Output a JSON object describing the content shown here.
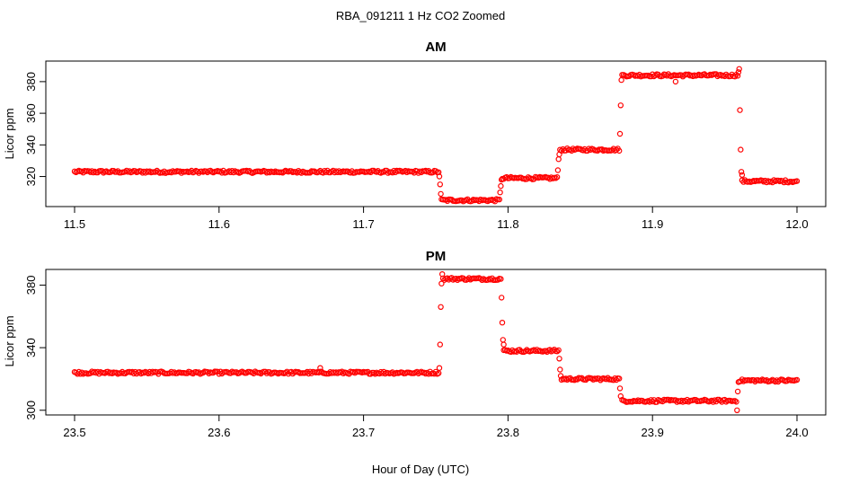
{
  "figure_title": "RBA_091211  1 Hz CO2 Zoomed",
  "xlabel": "Hour of Day (UTC)",
  "colors": {
    "points": "#ff0000",
    "axis": "#000000",
    "background": "#ffffff"
  },
  "chart_data": [
    {
      "type": "scatter",
      "title": "AM",
      "ylabel": "Licor ppm",
      "xlim": [
        11.5,
        12.0
      ],
      "ylim": [
        301,
        393
      ],
      "xticks": [
        11.5,
        11.6,
        11.7,
        11.8,
        11.9,
        12.0
      ],
      "xtick_labels": [
        "11.5",
        "11.6",
        "11.7",
        "11.8",
        "11.9",
        "12.0"
      ],
      "yticks": [
        320,
        340,
        360,
        380
      ],
      "ytick_labels": [
        "320",
        "340",
        "360",
        "380"
      ],
      "grid": false,
      "series": [
        {
          "segments": [
            {
              "x_start": 11.5,
              "x_end": 11.752,
              "y": 323
            },
            {
              "x_start": 11.754,
              "x_end": 11.794,
              "y": 305
            },
            {
              "x_start": 11.796,
              "x_end": 11.834,
              "y": 319
            },
            {
              "x_start": 11.836,
              "x_end": 11.877,
              "y": 337
            },
            {
              "x_start": 11.879,
              "x_end": 11.959,
              "y": 384
            },
            {
              "x_start": 11.962,
              "x_end": 12.0,
              "y": 317
            }
          ],
          "transition_points": [
            [
              11.7525,
              320
            ],
            [
              11.753,
              315
            ],
            [
              11.7535,
              309
            ],
            [
              11.7945,
              310
            ],
            [
              11.795,
              314
            ],
            [
              11.7955,
              318
            ],
            [
              11.8345,
              324
            ],
            [
              11.835,
              331
            ],
            [
              11.8355,
              334
            ],
            [
              11.8775,
              347
            ],
            [
              11.878,
              365
            ],
            [
              11.8785,
              381
            ],
            [
              11.9595,
              386
            ],
            [
              11.96,
              388
            ],
            [
              11.9605,
              362
            ],
            [
              11.961,
              337
            ],
            [
              11.9615,
              323
            ],
            [
              11.962,
              321
            ],
            [
              11.916,
              380
            ]
          ]
        }
      ]
    },
    {
      "type": "scatter",
      "title": "PM",
      "ylabel": "Licor ppm",
      "xlim": [
        23.5,
        24.0
      ],
      "ylim": [
        297,
        390
      ],
      "xticks": [
        23.5,
        23.6,
        23.7,
        23.8,
        23.9,
        24.0
      ],
      "xtick_labels": [
        "23.5",
        "23.6",
        "23.7",
        "23.8",
        "23.9",
        "24.0"
      ],
      "yticks": [
        300,
        340,
        380
      ],
      "ytick_labels": [
        "300",
        "340",
        "380"
      ],
      "grid": false,
      "series": [
        {
          "segments": [
            {
              "x_start": 23.5,
              "x_end": 23.752,
              "y": 324
            },
            {
              "x_start": 23.755,
              "x_end": 23.795,
              "y": 384
            },
            {
              "x_start": 23.797,
              "x_end": 23.835,
              "y": 338
            },
            {
              "x_start": 23.837,
              "x_end": 23.877,
              "y": 320
            },
            {
              "x_start": 23.879,
              "x_end": 23.958,
              "y": 306
            },
            {
              "x_start": 23.96,
              "x_end": 24.0,
              "y": 319
            }
          ],
          "transition_points": [
            [
              23.7525,
              327
            ],
            [
              23.753,
              342
            ],
            [
              23.7535,
              366
            ],
            [
              23.754,
              381
            ],
            [
              23.7545,
              387
            ],
            [
              23.7955,
              372
            ],
            [
              23.796,
              356
            ],
            [
              23.7965,
              345
            ],
            [
              23.797,
              342
            ],
            [
              23.8355,
              333
            ],
            [
              23.836,
              326
            ],
            [
              23.8365,
              322
            ],
            [
              23.8775,
              314
            ],
            [
              23.878,
              309
            ],
            [
              23.9585,
              300
            ],
            [
              23.959,
              312
            ],
            [
              23.9595,
              318
            ],
            [
              23.67,
              327
            ]
          ]
        }
      ]
    }
  ]
}
